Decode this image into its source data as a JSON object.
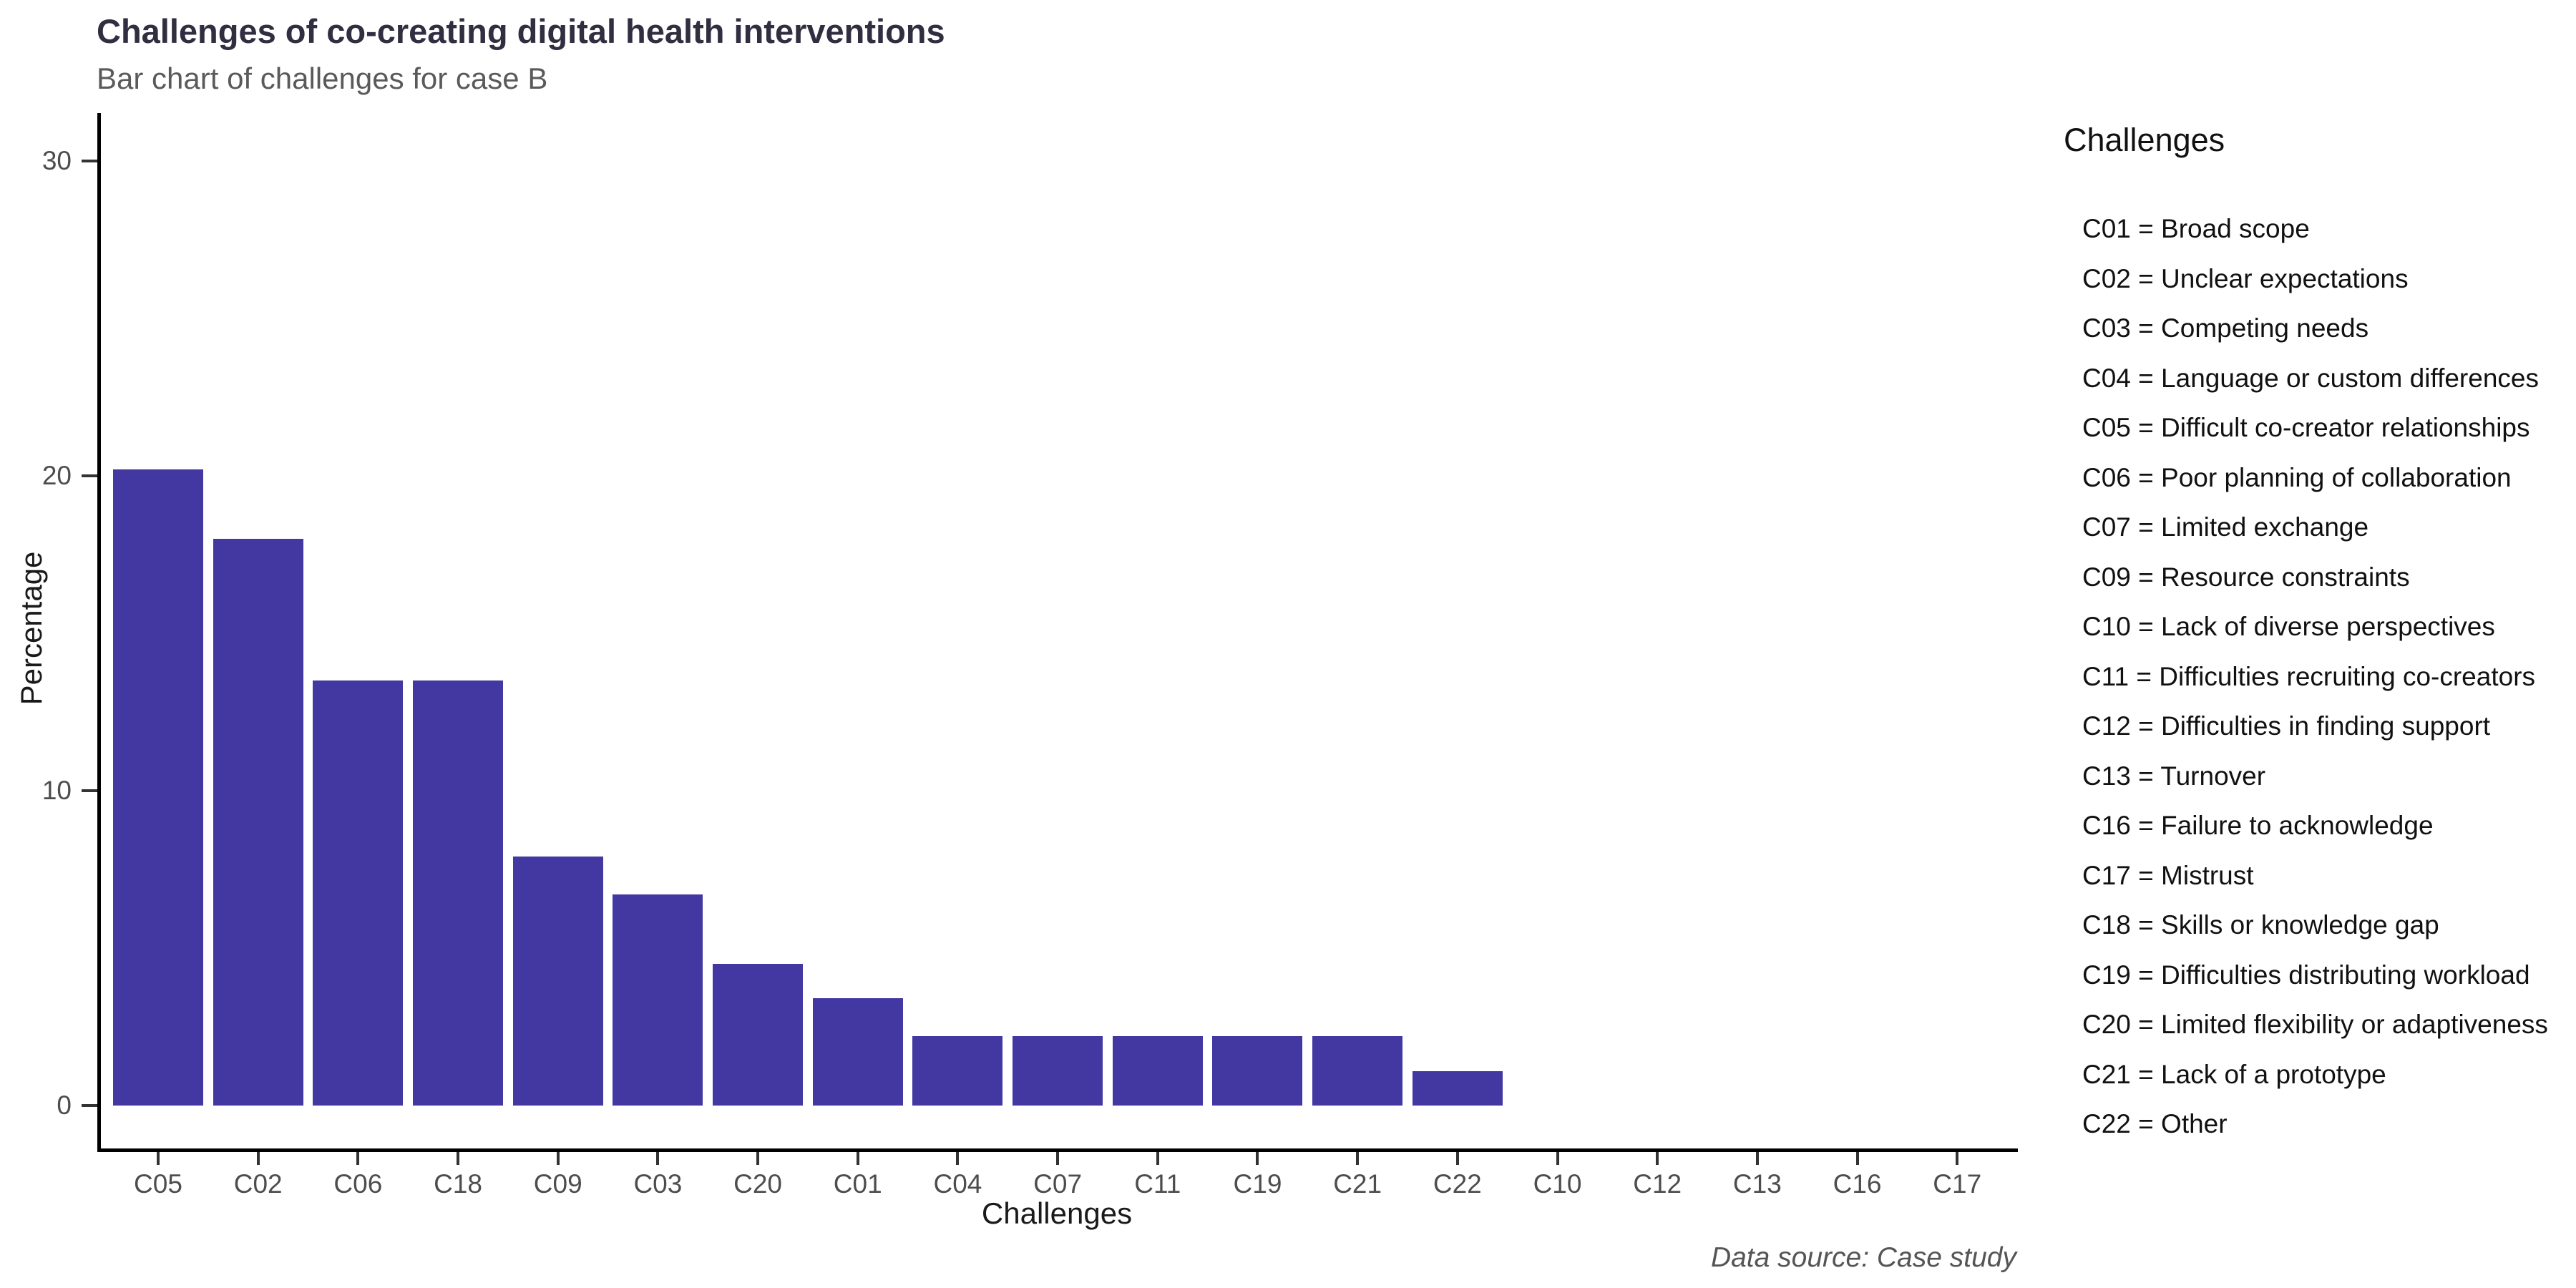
{
  "header": {
    "title": "Challenges of co-creating digital health interventions",
    "subtitle": "Bar chart of challenges for case B"
  },
  "chart_data": {
    "type": "bar",
    "title": "Challenges of co-creating digital health interventions",
    "subtitle": "Bar chart of challenges for case B",
    "xlabel": "Challenges",
    "ylabel": "Percentage",
    "categories": [
      "C05",
      "C02",
      "C06",
      "C18",
      "C09",
      "C03",
      "C20",
      "C01",
      "C04",
      "C07",
      "C11",
      "C19",
      "C21",
      "C22",
      "C10",
      "C12",
      "C13",
      "C16",
      "C17"
    ],
    "values": [
      20.2,
      18.0,
      13.5,
      13.5,
      7.9,
      6.7,
      4.5,
      3.4,
      2.2,
      2.2,
      2.2,
      2.2,
      2.2,
      1.1,
      0,
      0,
      0,
      0,
      0
    ],
    "yticks": [
      0,
      10,
      20,
      30
    ],
    "ylim": [
      0,
      31.5
    ],
    "grid": false,
    "legend_position": "right",
    "bar_color": "#4338a2",
    "title_color": "#302e40",
    "subtitle_color": "#5a5a5a",
    "tick_label_color": "#4d4d4d"
  },
  "legend": {
    "title": "Challenges",
    "entries": [
      {
        "code": "C01",
        "label": "Broad scope"
      },
      {
        "code": "C02",
        "label": "Unclear expectations"
      },
      {
        "code": "C03",
        "label": "Competing needs"
      },
      {
        "code": "C04",
        "label": "Language or custom differences"
      },
      {
        "code": "C05",
        "label": "Difficult co-creator relationships"
      },
      {
        "code": "C06",
        "label": "Poor planning of collaboration"
      },
      {
        "code": "C07",
        "label": "Limited exchange"
      },
      {
        "code": "C09",
        "label": "Resource constraints"
      },
      {
        "code": "C10",
        "label": "Lack of diverse perspectives"
      },
      {
        "code": "C11",
        "label": "Difficulties recruiting co-creators"
      },
      {
        "code": "C12",
        "label": "Difficulties in finding support"
      },
      {
        "code": "C13",
        "label": "Turnover"
      },
      {
        "code": "C16",
        "label": "Failure to acknowledge"
      },
      {
        "code": "C17",
        "label": "Mistrust"
      },
      {
        "code": "C18",
        "label": "Skills or knowledge gap"
      },
      {
        "code": "C19",
        "label": "Difficulties distributing workload"
      },
      {
        "code": "C20",
        "label": "Limited flexibility or adaptiveness"
      },
      {
        "code": "C21",
        "label": "Lack of a prototype"
      },
      {
        "code": "C22",
        "label": "Other"
      }
    ]
  },
  "caption": "Data source: Case study"
}
